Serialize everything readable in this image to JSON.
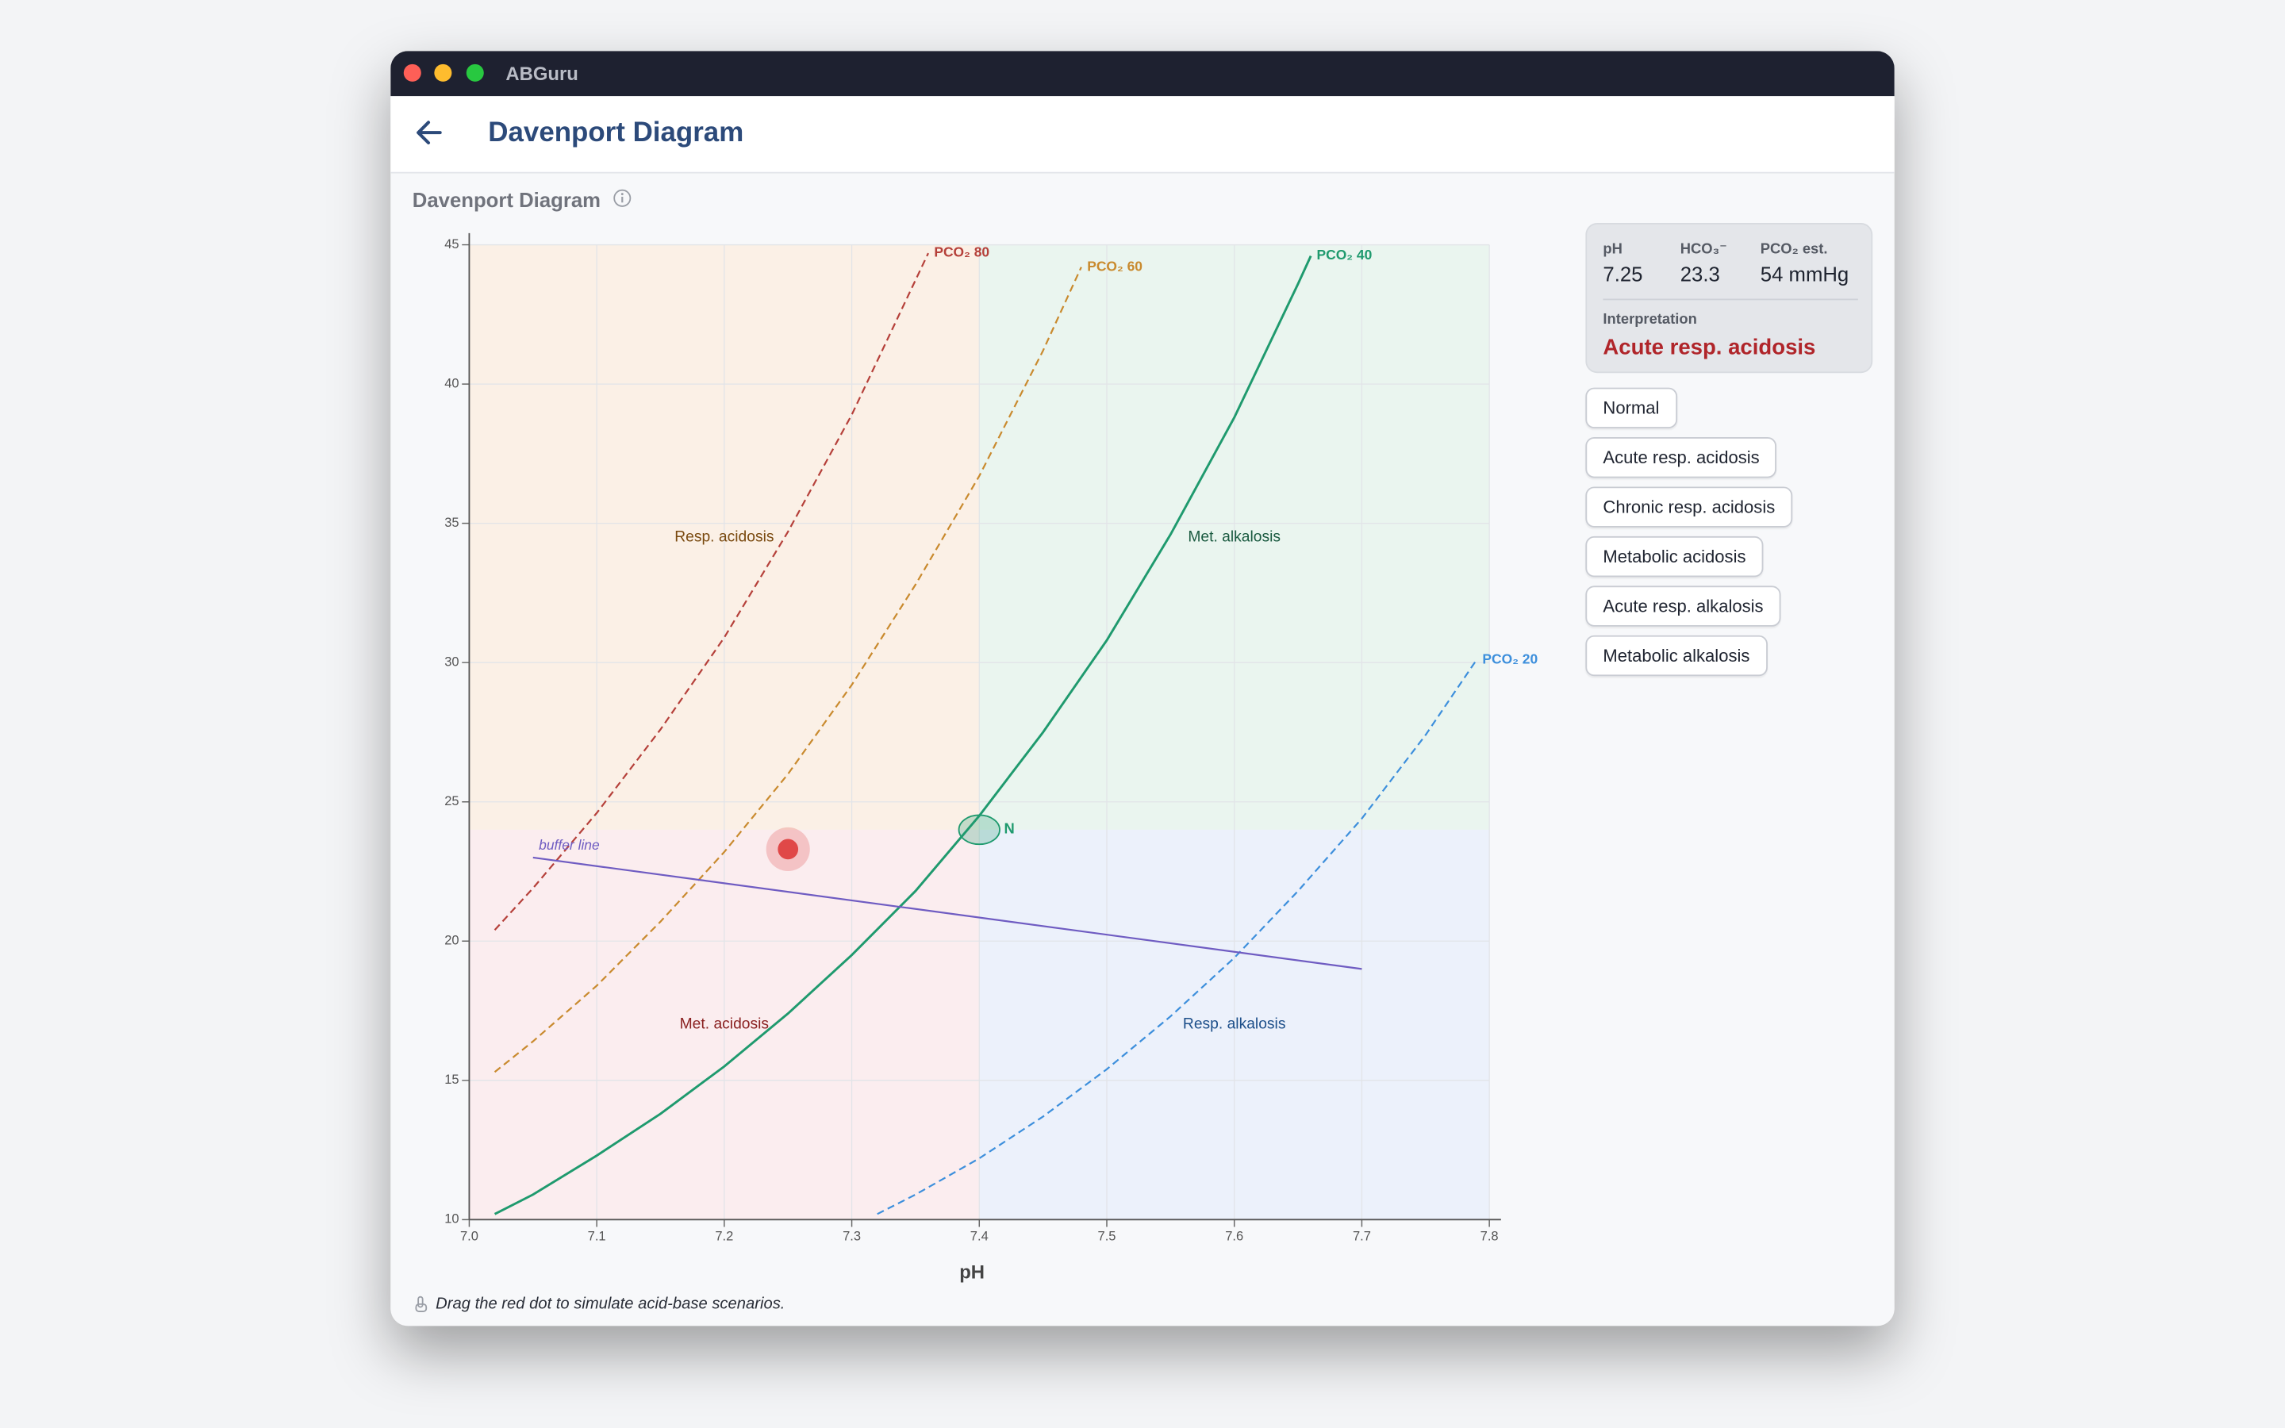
{
  "window": {
    "title": "ABGuru"
  },
  "header": {
    "title": "Davenport Diagram"
  },
  "section": {
    "title": "Davenport Diagram"
  },
  "chart_data": {
    "type": "line",
    "x_label": "pH",
    "xlim": [
      7.0,
      7.8
    ],
    "xticks": [
      {
        "value": 7.0,
        "label": "7.0"
      },
      7.1,
      7.2,
      7.3,
      7.4,
      7.5,
      7.6,
      7.7,
      7.8
    ],
    "ylim": [
      10,
      45
    ],
    "yticks": [
      10,
      15,
      20,
      25,
      30,
      35,
      40,
      45
    ],
    "grid": true,
    "regions": [
      {
        "name": "Resp. acidosis",
        "color": "#fbefe2",
        "label_color": "#7a4a10",
        "xrange": [
          7.0,
          7.4
        ],
        "yrange": [
          24,
          45
        ]
      },
      {
        "name": "Met. alkalosis",
        "color": "#e7f4ec",
        "label_color": "#1a5a40",
        "xrange": [
          7.4,
          7.8
        ],
        "yrange": [
          24,
          45
        ]
      },
      {
        "name": "Met. acidosis",
        "color": "#fbebec",
        "label_color": "#8a2020",
        "xrange": [
          7.0,
          7.4
        ],
        "yrange": [
          10,
          24
        ]
      },
      {
        "name": "Resp. alkalosis",
        "color": "#eaf0fa",
        "label_color": "#1d4f8a",
        "xrange": [
          7.4,
          7.8
        ],
        "yrange": [
          10,
          24
        ]
      }
    ],
    "series": [
      {
        "name": "PCO₂ 80",
        "color": "#b5403a",
        "dashed": true,
        "x": [
          7.02,
          7.05,
          7.1,
          7.15,
          7.2,
          7.25,
          7.3,
          7.36
        ],
        "values": [
          20.4,
          21.9,
          24.6,
          27.6,
          30.9,
          34.7,
          38.9,
          44.7
        ]
      },
      {
        "name": "PCO₂ 60",
        "color": "#c98a2e",
        "dashed": true,
        "x": [
          7.02,
          7.05,
          7.1,
          7.15,
          7.2,
          7.25,
          7.3,
          7.35,
          7.4,
          7.45,
          7.48
        ],
        "values": [
          15.3,
          16.4,
          18.4,
          20.7,
          23.2,
          26.0,
          29.2,
          32.8,
          36.7,
          41.2,
          44.2
        ]
      },
      {
        "name": "PCO₂ 40",
        "color": "#1f9a6e",
        "dashed": false,
        "x": [
          7.02,
          7.05,
          7.1,
          7.15,
          7.2,
          7.25,
          7.3,
          7.35,
          7.4,
          7.45,
          7.5,
          7.55,
          7.6,
          7.65,
          7.66
        ],
        "values": [
          10.2,
          10.9,
          12.3,
          13.8,
          15.5,
          17.4,
          19.5,
          21.8,
          24.5,
          27.5,
          30.8,
          34.6,
          38.8,
          43.6,
          44.6
        ]
      },
      {
        "name": "PCO₂ 20",
        "color": "#3d8fdc",
        "dashed": true,
        "x": [
          7.32,
          7.35,
          7.4,
          7.45,
          7.5,
          7.55,
          7.6,
          7.65,
          7.7,
          7.75,
          7.79
        ],
        "values": [
          10.2,
          10.9,
          12.2,
          13.7,
          15.4,
          17.3,
          19.4,
          21.8,
          24.4,
          27.4,
          30.1
        ]
      }
    ],
    "buffer_line": {
      "name": "buffer line",
      "color": "#6f5cc2",
      "x": [
        7.05,
        7.7
      ],
      "values": [
        23.0,
        19.0
      ]
    },
    "normal": {
      "label": "N",
      "color": "#1f9a6e",
      "x": 7.4,
      "y": 24
    },
    "marker": {
      "color": "#e04848",
      "x": 7.25,
      "y": 23.3
    }
  },
  "panel": {
    "fields": [
      {
        "label": "pH",
        "value": "7.25"
      },
      {
        "label": "HCO₃⁻",
        "value": "23.3"
      },
      {
        "label": "PCO₂ est.",
        "value": "54 mmHg"
      }
    ],
    "interpretation_label": "Interpretation",
    "interpretation": "Acute resp. acidosis"
  },
  "buttons": [
    "Normal",
    "Acute resp. acidosis",
    "Chronic resp. acidosis",
    "Metabolic acidosis",
    "Acute resp. alkalosis",
    "Metabolic alkalosis"
  ],
  "footer": "Drag the red dot to simulate acid-base scenarios."
}
